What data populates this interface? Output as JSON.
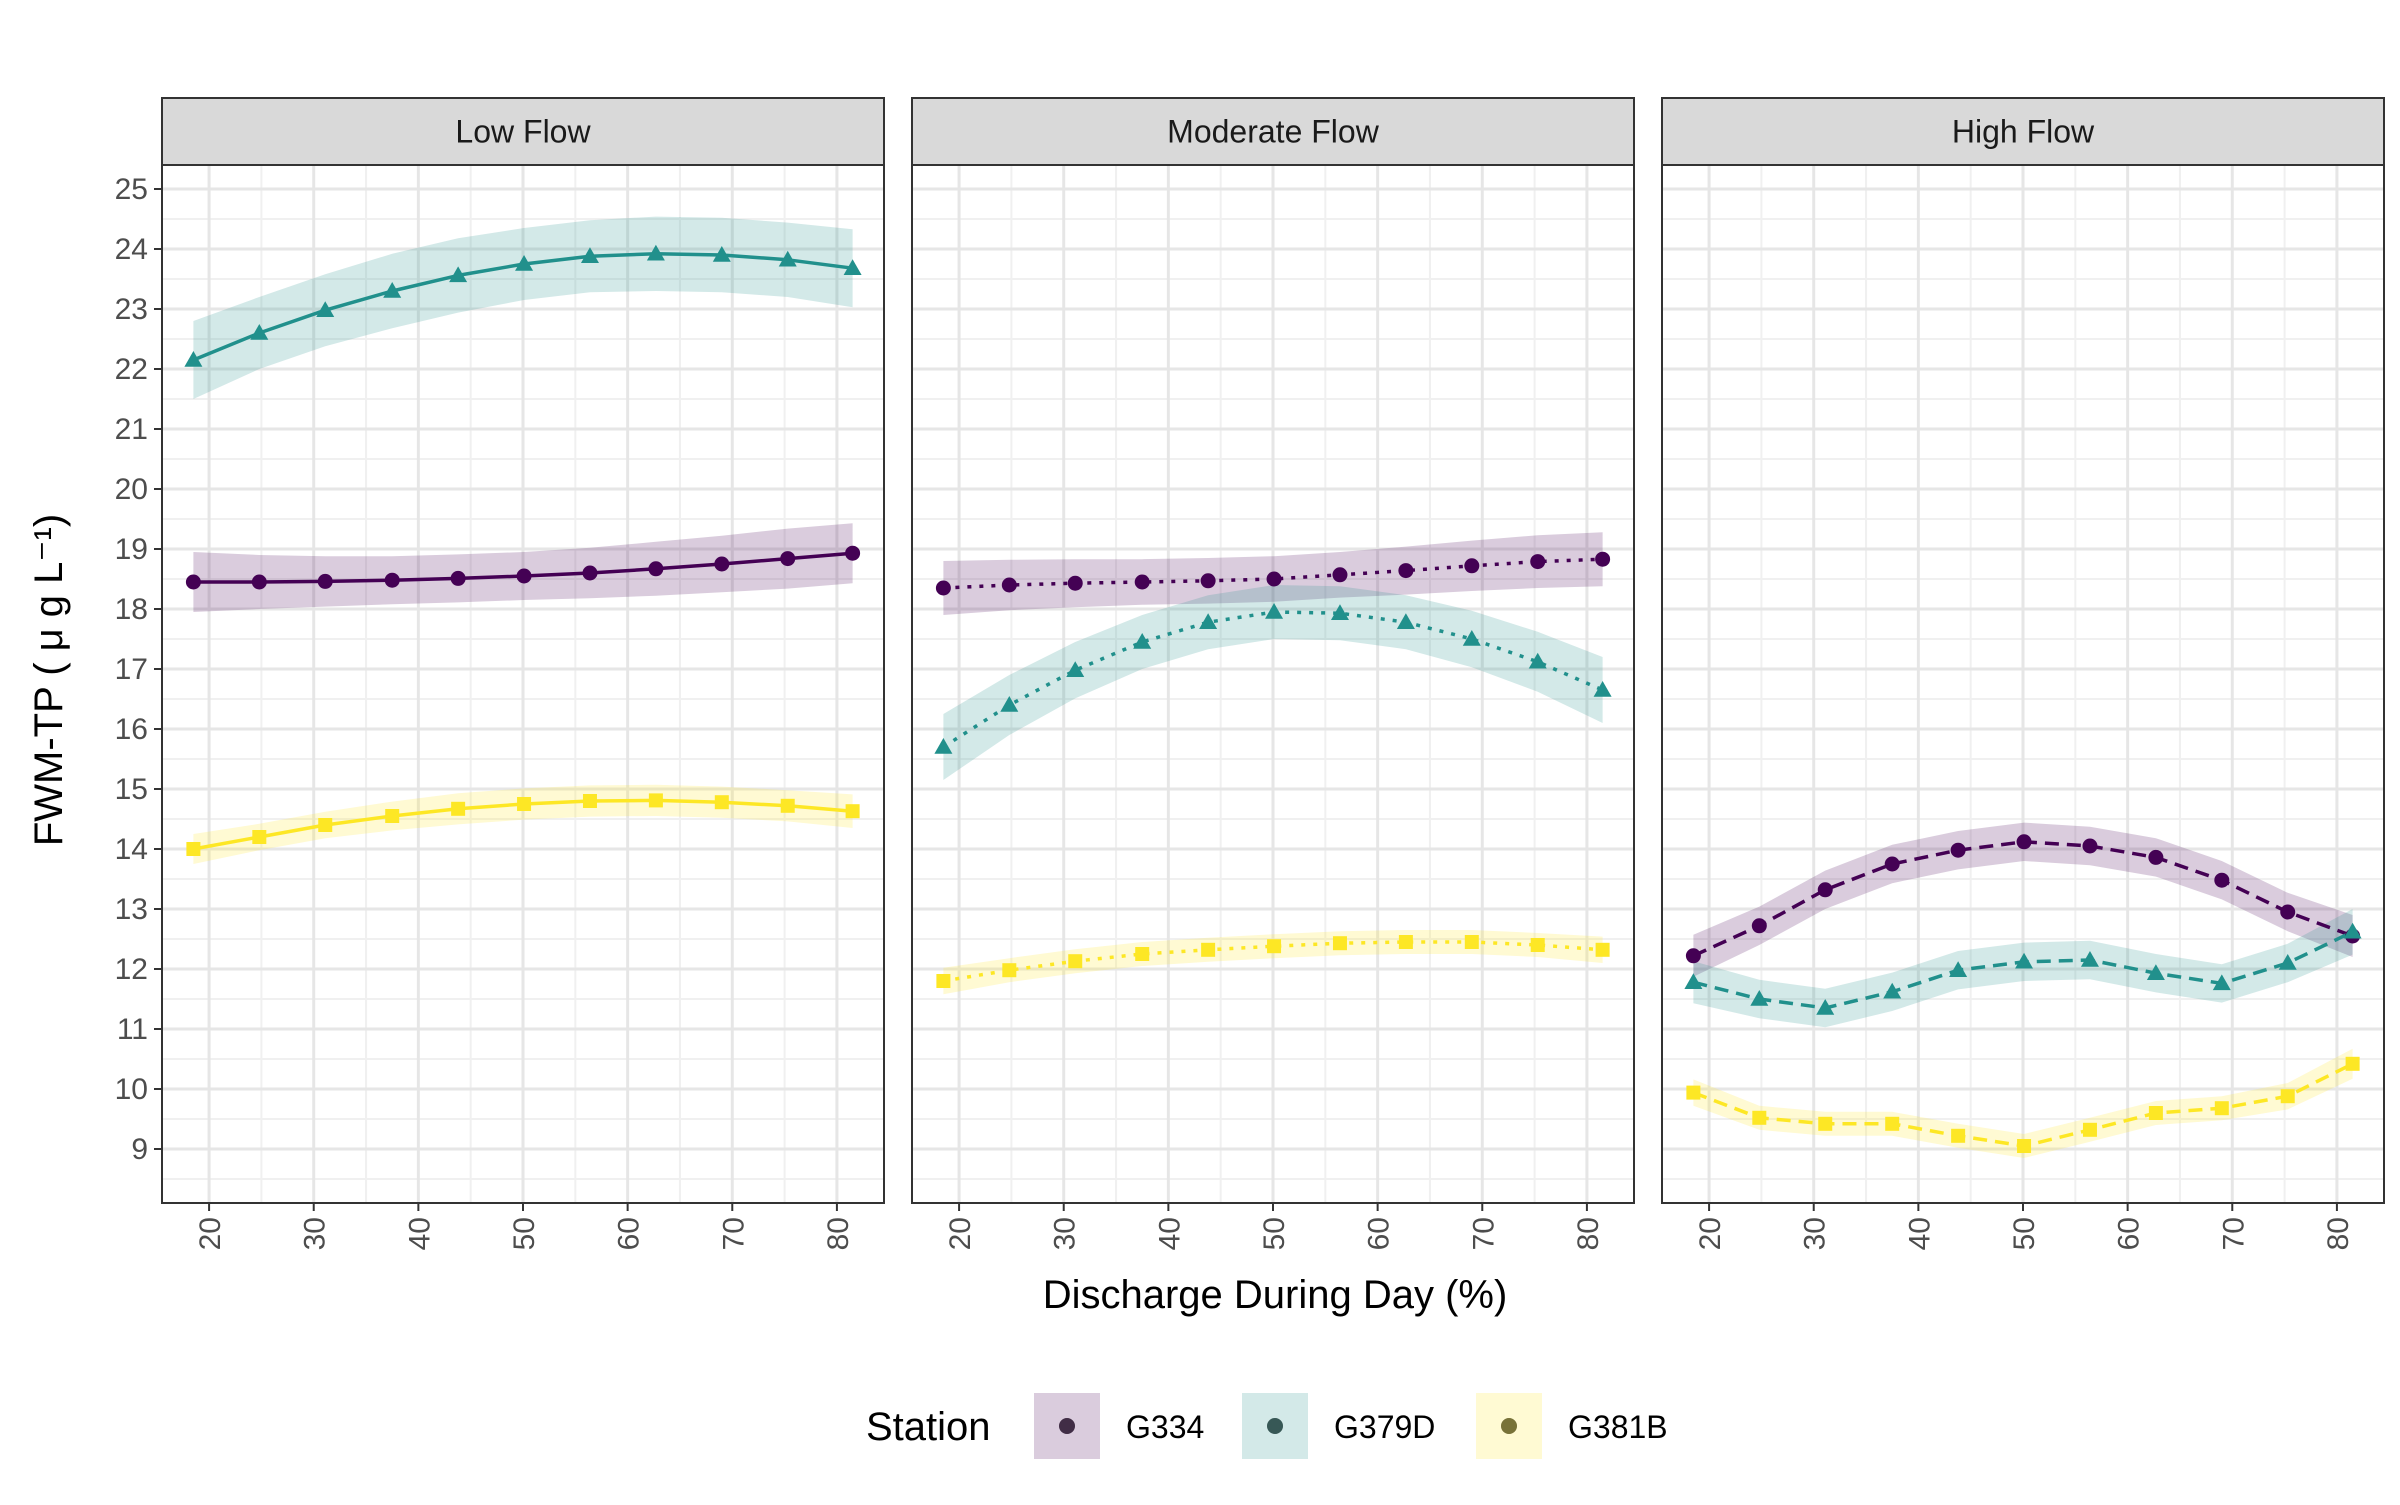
{
  "chart_data": {
    "type": "line",
    "xlabel": "Discharge During Day (%)",
    "ylabel": "FWM-TP ( μ g L⁻¹)",
    "xlim": [
      15.5,
      84.5
    ],
    "ylim": [
      8.1,
      25.4
    ],
    "x_ticks": [
      20,
      30,
      40,
      50,
      60,
      70,
      80
    ],
    "y_ticks": [
      9,
      10,
      11,
      12,
      13,
      14,
      15,
      16,
      17,
      18,
      19,
      20,
      21,
      22,
      23,
      24,
      25
    ],
    "grid": true,
    "legend": {
      "position": "bottom",
      "title": "Station",
      "entries": [
        {
          "name": "G334",
          "color": "#440154"
        },
        {
          "name": "G379D",
          "color": "#21908C"
        },
        {
          "name": "G381B",
          "color": "#FDE725"
        }
      ]
    },
    "x": [
      18.5,
      24.8,
      31.1,
      37.5,
      43.8,
      50.1,
      56.4,
      62.7,
      69.0,
      75.3,
      81.5
    ],
    "facets": [
      {
        "label": "Low Flow",
        "linestyle": "solid",
        "series": [
          {
            "name": "G334",
            "values": [
              18.45,
              18.45,
              18.46,
              18.48,
              18.51,
              18.55,
              18.6,
              18.67,
              18.75,
              18.84,
              18.93
            ],
            "ci": [
              0.5,
              0.45,
              0.42,
              0.4,
              0.4,
              0.4,
              0.42,
              0.45,
              0.47,
              0.5,
              0.5
            ]
          },
          {
            "name": "G379D",
            "values": [
              22.15,
              22.6,
              22.98,
              23.3,
              23.56,
              23.75,
              23.88,
              23.92,
              23.9,
              23.82,
              23.68
            ],
            "ci": [
              0.65,
              0.6,
              0.6,
              0.62,
              0.62,
              0.6,
              0.6,
              0.62,
              0.62,
              0.62,
              0.65
            ]
          },
          {
            "name": "G381B",
            "values": [
              14.0,
              14.2,
              14.4,
              14.55,
              14.67,
              14.75,
              14.8,
              14.81,
              14.78,
              14.72,
              14.63
            ],
            "ci": [
              0.25,
              0.22,
              0.22,
              0.24,
              0.26,
              0.26,
              0.26,
              0.26,
              0.26,
              0.26,
              0.28
            ]
          }
        ]
      },
      {
        "label": "Moderate Flow",
        "linestyle": "dotted",
        "series": [
          {
            "name": "G334",
            "values": [
              18.35,
              18.4,
              18.43,
              18.45,
              18.47,
              18.5,
              18.57,
              18.64,
              18.72,
              18.79,
              18.83
            ],
            "ci": [
              0.45,
              0.42,
              0.4,
              0.38,
              0.38,
              0.38,
              0.38,
              0.4,
              0.42,
              0.44,
              0.45
            ]
          },
          {
            "name": "G379D",
            "values": [
              15.7,
              16.4,
              16.98,
              17.45,
              17.78,
              17.95,
              17.93,
              17.78,
              17.5,
              17.12,
              16.65
            ],
            "ci": [
              0.55,
              0.5,
              0.47,
              0.45,
              0.45,
              0.45,
              0.45,
              0.45,
              0.47,
              0.5,
              0.55
            ]
          },
          {
            "name": "G381B",
            "values": [
              11.8,
              11.98,
              12.13,
              12.25,
              12.32,
              12.38,
              12.43,
              12.45,
              12.45,
              12.4,
              12.32
            ],
            "ci": [
              0.22,
              0.2,
              0.2,
              0.2,
              0.2,
              0.2,
              0.2,
              0.2,
              0.2,
              0.2,
              0.22
            ]
          }
        ]
      },
      {
        "label": "High Flow",
        "linestyle": "dashed",
        "series": [
          {
            "name": "G334",
            "values": [
              12.22,
              12.72,
              13.32,
              13.75,
              13.98,
              14.12,
              14.05,
              13.86,
              13.48,
              12.95,
              12.55
            ],
            "ci": [
              0.35,
              0.32,
              0.32,
              0.32,
              0.32,
              0.32,
              0.32,
              0.32,
              0.32,
              0.32,
              0.35
            ]
          },
          {
            "name": "G379D",
            "values": [
              11.78,
              11.5,
              11.35,
              11.62,
              11.98,
              12.12,
              12.15,
              11.93,
              11.76,
              12.1,
              12.62
            ],
            "ci": [
              0.35,
              0.32,
              0.32,
              0.32,
              0.32,
              0.32,
              0.32,
              0.32,
              0.32,
              0.32,
              0.38
            ]
          },
          {
            "name": "G381B",
            "values": [
              9.94,
              9.52,
              9.42,
              9.42,
              9.22,
              9.05,
              9.32,
              9.6,
              9.68,
              9.88,
              10.42
            ],
            "ci": [
              0.22,
              0.2,
              0.2,
              0.2,
              0.2,
              0.2,
              0.2,
              0.2,
              0.2,
              0.22,
              0.25
            ]
          }
        ]
      }
    ]
  }
}
